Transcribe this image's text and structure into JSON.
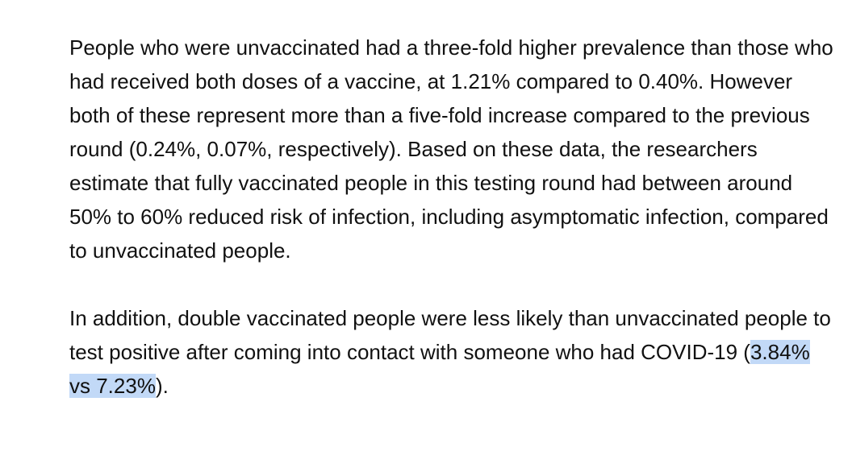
{
  "paragraphs": {
    "p1": {
      "text": "People who were unvaccinated had a three-fold higher prevalence than those who had received both doses of a vaccine, at 1.21% compared to 0.40%. However both of these represent more than a five-fold increase compared to the previous round (0.24%, 0.07%, respectively). Based on these data, the researchers estimate that fully vaccinated people in this testing round had between around 50% to 60% reduced risk of infection, including asymptomatic infection, compared to unvaccinated people."
    },
    "p2": {
      "before": "In addition, double vaccinated people were less likely than unvaccinated people to test positive after coming into contact with someone who had COVID-19 (",
      "selected": "3.84% vs 7.23%",
      "after": ")."
    }
  },
  "colors": {
    "text": "#111111",
    "selection_highlight": "#c2d9f7",
    "background": "#ffffff"
  }
}
